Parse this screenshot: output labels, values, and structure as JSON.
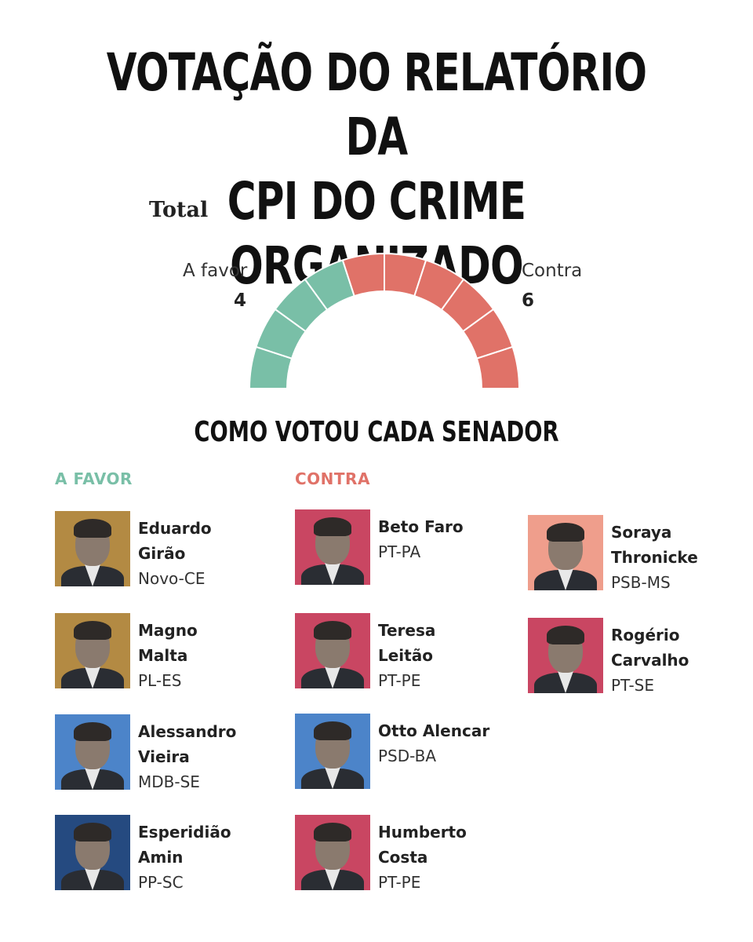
{
  "title_line1": "VOTAÇÃO DO RELATÓRIO DA",
  "title_line2": "CPI DO CRIME ORGANIZADO",
  "chart_data": {
    "type": "pie",
    "title": "Total",
    "categories": [
      "A favor",
      "Contra"
    ],
    "values": [
      4,
      6
    ],
    "colors": [
      "#79bfa7",
      "#e07268"
    ],
    "style": "half-donut"
  },
  "subtitle": "COMO VOTOU CADA SENADOR",
  "columns": {
    "favor": {
      "label": "A FAVOR",
      "color": "#79bfa7"
    },
    "contra": {
      "label": "CONTRA",
      "color": "#e07268"
    }
  },
  "senators": [
    {
      "name": "Eduardo\nGirão",
      "party": "Novo-CE",
      "vote": "favor",
      "bg": "#b38a43"
    },
    {
      "name": "Magno\nMalta",
      "party": "PL-ES",
      "vote": "favor",
      "bg": "#b38a43"
    },
    {
      "name": "Alessandro\nVieira",
      "party": "MDB-SE",
      "vote": "favor",
      "bg": "#4c84c9"
    },
    {
      "name": "Esperidião\nAmin",
      "party": "PP-SC",
      "vote": "favor",
      "bg": "#254a80"
    },
    {
      "name": "Beto Faro",
      "party": "PT-PA",
      "vote": "contra",
      "bg": "#c94662"
    },
    {
      "name": "Teresa\nLeitão",
      "party": "PT-PE",
      "vote": "contra",
      "bg": "#c94662"
    },
    {
      "name": "Otto Alencar",
      "party": "PSD-BA",
      "vote": "contra",
      "bg": "#4c84c9"
    },
    {
      "name": "Humberto\nCosta",
      "party": "PT-PE",
      "vote": "contra",
      "bg": "#c94662"
    },
    {
      "name": "Soraya\nThronicke",
      "party": "PSB-MS",
      "vote": "contra",
      "bg": "#ef9e8c"
    },
    {
      "name": "Rogério\nCarvalho",
      "party": "PT-SE",
      "vote": "contra",
      "bg": "#c94662"
    }
  ]
}
